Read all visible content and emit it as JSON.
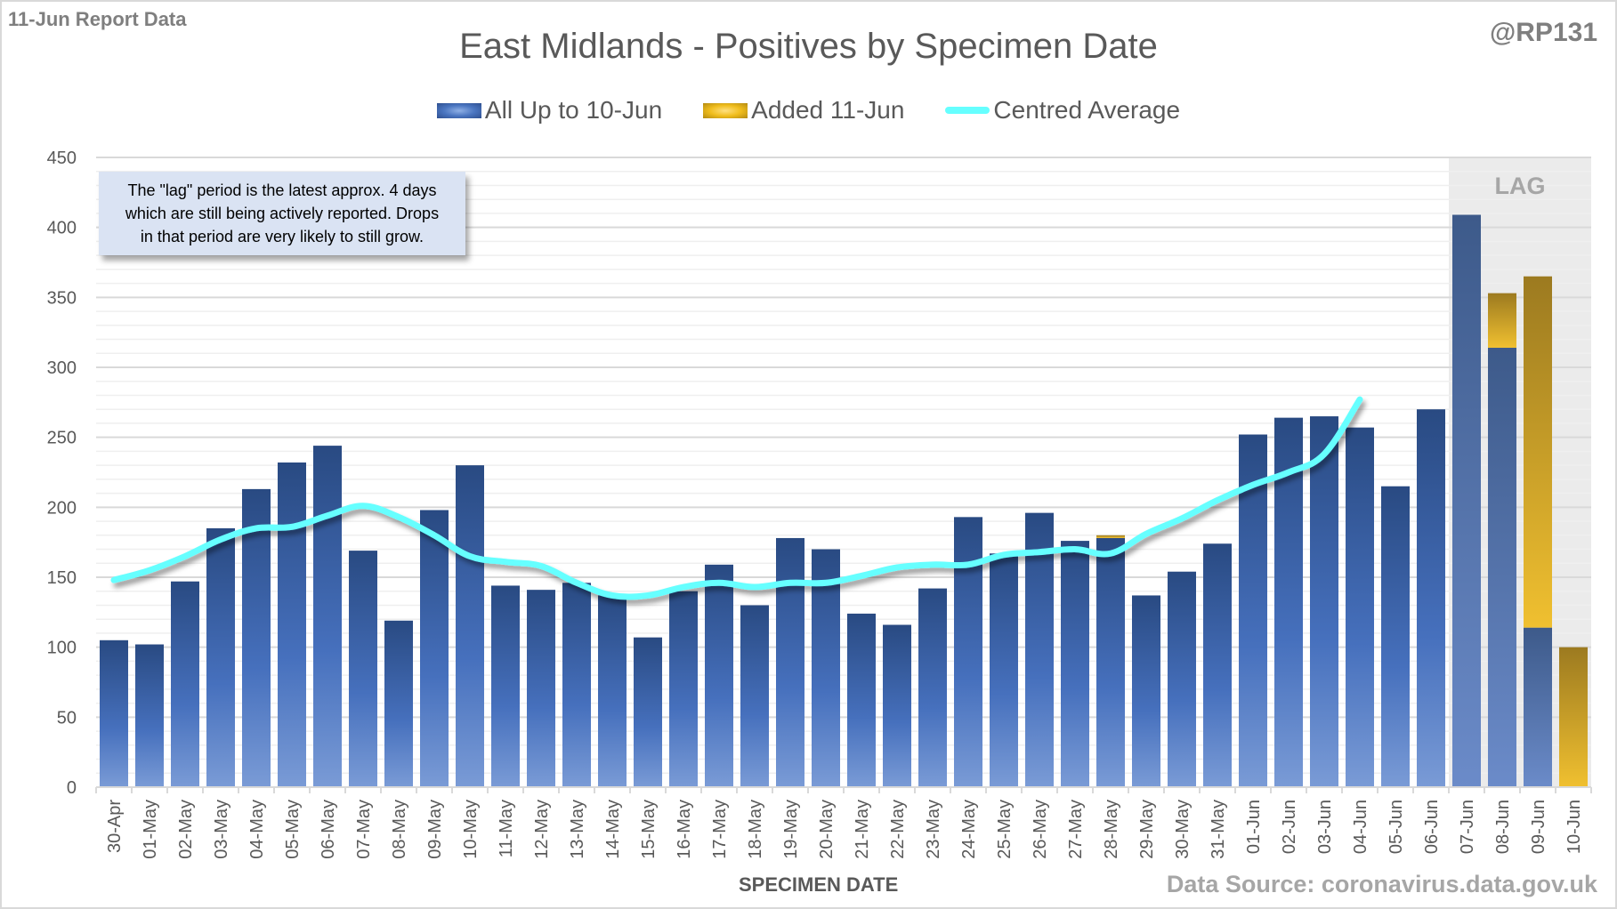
{
  "header": {
    "report_label": "11-Jun Report Data",
    "handle": "@RP131",
    "source": "Data Source: coronavirus.data.gov.uk"
  },
  "annotation": {
    "lines": [
      "The \"lag\" period is the latest approx. 4 days",
      "which are still being actively reported.  Drops",
      "in that period are very likely to still grow."
    ],
    "lag_label": "LAG"
  },
  "colors": {
    "all_up_to": "#2f5597",
    "added": "#e8b520",
    "centred_average": "#66ffff",
    "lag_shade": "#ebebeb"
  },
  "chart_data": {
    "type": "bar",
    "stacked": true,
    "title": "East Midlands - Positives by Specimen Date",
    "xlabel": "SPECIMEN DATE",
    "ylabel": "",
    "ylim": [
      0,
      450
    ],
    "yticks": [
      0,
      50,
      100,
      150,
      200,
      250,
      300,
      350,
      400,
      450
    ],
    "grid": true,
    "legend_position": "top-center",
    "lag_region": [
      "07-Jun",
      "10-Jun"
    ],
    "categories": [
      "30-Apr",
      "01-May",
      "02-May",
      "03-May",
      "04-May",
      "05-May",
      "06-May",
      "07-May",
      "08-May",
      "09-May",
      "10-May",
      "11-May",
      "12-May",
      "13-May",
      "14-May",
      "15-May",
      "16-May",
      "17-May",
      "18-May",
      "19-May",
      "20-May",
      "21-May",
      "22-May",
      "23-May",
      "24-May",
      "25-May",
      "26-May",
      "27-May",
      "28-May",
      "29-May",
      "30-May",
      "31-May",
      "01-Jun",
      "02-Jun",
      "03-Jun",
      "04-Jun",
      "05-Jun",
      "06-Jun",
      "07-Jun",
      "08-Jun",
      "09-Jun",
      "10-Jun"
    ],
    "series": [
      {
        "name": "All Up to 10-Jun",
        "kind": "bar",
        "values": [
          105,
          102,
          147,
          185,
          213,
          232,
          244,
          169,
          119,
          198,
          230,
          144,
          141,
          146,
          137,
          107,
          140,
          159,
          130,
          178,
          170,
          124,
          116,
          142,
          193,
          167,
          196,
          176,
          178,
          137,
          154,
          174,
          252,
          264,
          265,
          257,
          215,
          270,
          409,
          314,
          114,
          0
        ]
      },
      {
        "name": "Added 11-Jun",
        "kind": "bar",
        "values": [
          0,
          0,
          0,
          0,
          0,
          0,
          0,
          0,
          0,
          0,
          0,
          0,
          0,
          0,
          0,
          0,
          0,
          0,
          0,
          0,
          0,
          0,
          0,
          0,
          0,
          0,
          0,
          0,
          2,
          0,
          0,
          0,
          0,
          0,
          0,
          0,
          0,
          0,
          0,
          39,
          251,
          100
        ]
      },
      {
        "name": "Centred Average",
        "kind": "line",
        "values": [
          148,
          155,
          165,
          177,
          185,
          186,
          194,
          201,
          193,
          180,
          165,
          161,
          158,
          146,
          137,
          137,
          143,
          146,
          143,
          146,
          146,
          151,
          157,
          159,
          159,
          166,
          168,
          170,
          167,
          181,
          192,
          205,
          216,
          225,
          238,
          277,
          null,
          null,
          null,
          null,
          null,
          null
        ]
      }
    ]
  }
}
